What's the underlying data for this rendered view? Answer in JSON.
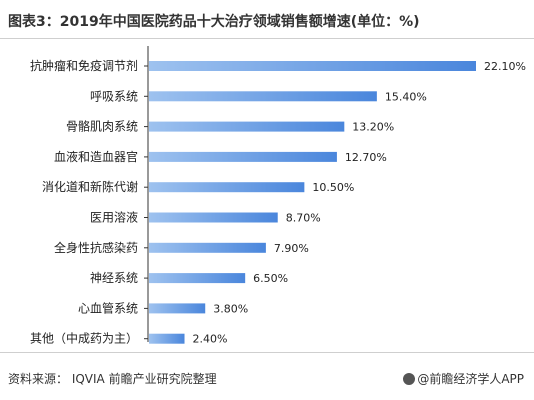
{
  "title": "图表3：2019年中国医院药品十大治疗领域销售额增速(单位：%)",
  "footer": {
    "source": "资料来源：  IQVIA 前瞻产业研究院整理",
    "brand": "@前瞻经济学人APP"
  },
  "watermark": "前瞻产业研究院",
  "chart_data": {
    "type": "bar",
    "orientation": "horizontal",
    "categories": [
      "抗肿瘤和免疫调节剂",
      "呼吸系统",
      "骨骼肌肉系统",
      "血液和造血器官",
      "消化道和新陈代谢",
      "医用溶液",
      "全身性抗感染药",
      "神经系统",
      "心血管系统",
      "其他（中成药为主）"
    ],
    "values": [
      22.1,
      15.4,
      13.2,
      12.7,
      10.5,
      8.7,
      7.9,
      6.5,
      3.8,
      2.4
    ],
    "value_labels": [
      "22.10%",
      "15.40%",
      "13.20%",
      "12.70%",
      "10.50%",
      "8.70%",
      "7.90%",
      "6.50%",
      "3.80%",
      "2.40%"
    ],
    "xlim": [
      0,
      22.1
    ],
    "bar_color_start": "#9ec2ef",
    "bar_color_end": "#4a86dc",
    "grid": false,
    "legend": "none"
  }
}
